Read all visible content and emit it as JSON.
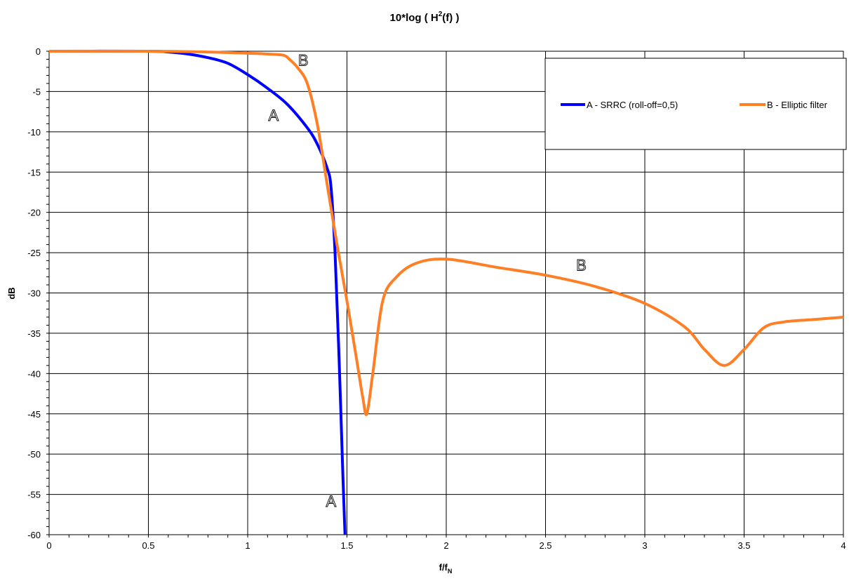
{
  "chart_data": {
    "type": "line",
    "title_main": "10*log ( H",
    "title_sup": "2",
    "title_tail": "(f) )",
    "xlabel_main": "f/f",
    "xlabel_sub": "N",
    "ylabel": "dB",
    "xlim": [
      0,
      4
    ],
    "ylim": [
      -60,
      0
    ],
    "x_ticks": [
      "0",
      "0.5",
      "1",
      "1.5",
      "2",
      "2.5",
      "3",
      "3.5",
      "4"
    ],
    "y_ticks": [
      "0",
      "-5",
      "-10",
      "-15",
      "-20",
      "-25",
      "-30",
      "-35",
      "-40",
      "-45",
      "-50",
      "-55",
      "-60"
    ],
    "grid": true,
    "legend_position": "top-right",
    "series": [
      {
        "name": "A - SRRC (roll-off=0,5)",
        "color": "#0000ff",
        "points": [
          [
            0,
            0
          ],
          [
            0.5,
            0
          ],
          [
            0.6,
            -0.1
          ],
          [
            0.7,
            -0.35
          ],
          [
            0.8,
            -0.8
          ],
          [
            0.9,
            -1.5
          ],
          [
            1.0,
            -2.9
          ],
          [
            1.1,
            -4.6
          ],
          [
            1.2,
            -6.6
          ],
          [
            1.3,
            -9.5
          ],
          [
            1.35,
            -11.5
          ],
          [
            1.4,
            -14.5
          ],
          [
            1.42,
            -17
          ],
          [
            1.44,
            -25
          ],
          [
            1.46,
            -38
          ],
          [
            1.48,
            -53
          ],
          [
            1.49,
            -60
          ]
        ]
      },
      {
        "name": "B - Elliptic filter",
        "color": "#ff7f27",
        "points": [
          [
            0,
            0
          ],
          [
            0.5,
            0
          ],
          [
            0.8,
            -0.1
          ],
          [
            1.0,
            -0.25
          ],
          [
            1.1,
            -0.35
          ],
          [
            1.18,
            -0.5
          ],
          [
            1.21,
            -1.0
          ],
          [
            1.25,
            -2.0
          ],
          [
            1.3,
            -4.0
          ],
          [
            1.35,
            -9.0
          ],
          [
            1.4,
            -16.5
          ],
          [
            1.45,
            -24.0
          ],
          [
            1.5,
            -31.0
          ],
          [
            1.55,
            -38.5
          ],
          [
            1.58,
            -43.0
          ],
          [
            1.6,
            -45.0
          ],
          [
            1.63,
            -40.0
          ],
          [
            1.68,
            -31.0
          ],
          [
            1.75,
            -28.0
          ],
          [
            1.85,
            -26.3
          ],
          [
            2.0,
            -25.8
          ],
          [
            2.25,
            -26.8
          ],
          [
            2.5,
            -27.8
          ],
          [
            2.75,
            -29.2
          ],
          [
            3.0,
            -31.3
          ],
          [
            3.2,
            -34.2
          ],
          [
            3.3,
            -37.0
          ],
          [
            3.4,
            -39.0
          ],
          [
            3.5,
            -37.0
          ],
          [
            3.6,
            -34.3
          ],
          [
            3.7,
            -33.6
          ],
          [
            3.85,
            -33.3
          ],
          [
            4.0,
            -33.0
          ]
        ]
      }
    ],
    "annotations": [
      {
        "text": "B",
        "x": 1.28,
        "y": -1.8
      },
      {
        "text": "A",
        "x": 1.13,
        "y": -8.6
      },
      {
        "text": "B",
        "x": 2.68,
        "y": -27.2
      },
      {
        "text": "A",
        "x": 1.42,
        "y": -56.5
      }
    ]
  }
}
